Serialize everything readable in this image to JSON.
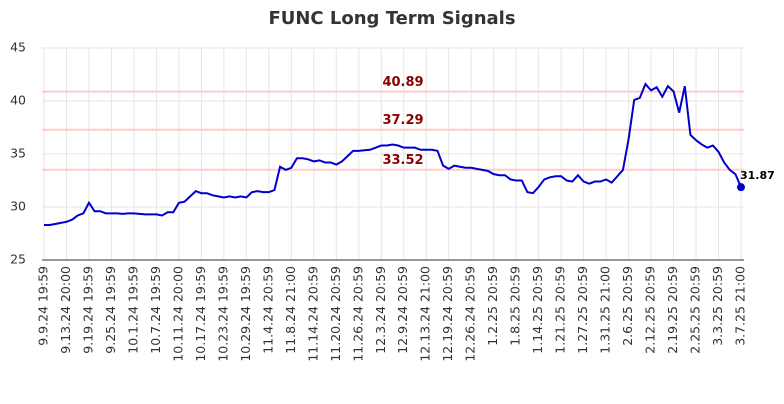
{
  "chart_data": {
    "type": "line",
    "title": "FUNC Long Term Signals",
    "categories": [
      "9.9.24 19:59",
      null,
      null,
      null,
      "9.13.24 20:00",
      null,
      null,
      null,
      "9.19.24 19:59",
      null,
      null,
      null,
      "9.25.24 19:59",
      null,
      null,
      null,
      "10.1.24 19:59",
      null,
      null,
      null,
      "10.7.24 19:59",
      null,
      null,
      null,
      "10.11.24 20:00",
      null,
      null,
      null,
      "10.17.24 19:59",
      null,
      null,
      null,
      "10.23.24 19:59",
      null,
      null,
      null,
      "10.29.24 19:59",
      null,
      null,
      null,
      "11.4.24 20:59",
      null,
      null,
      null,
      "11.8.24 21:00",
      null,
      null,
      null,
      "11.14.24 20:59",
      null,
      null,
      null,
      "11.20.24 20:59",
      null,
      null,
      null,
      "11.26.24 20:59",
      null,
      null,
      null,
      "12.3.24 20:59",
      null,
      null,
      null,
      "12.9.24 20:59",
      null,
      null,
      null,
      "12.13.24 21:00",
      null,
      null,
      null,
      "12.19.24 20:59",
      null,
      null,
      null,
      "12.26.24 20:59",
      null,
      null,
      null,
      "1.2.25 20:59",
      null,
      null,
      null,
      "1.8.25 20:59",
      null,
      null,
      null,
      "1.14.25 20:59",
      null,
      null,
      null,
      "1.21.25 20:59",
      null,
      null,
      null,
      "1.27.25 20:59",
      null,
      null,
      null,
      "1.31.25 21:00",
      null,
      null,
      null,
      "2.6.25 20:59",
      null,
      null,
      null,
      "2.12.25 20:59",
      null,
      null,
      null,
      "2.19.25 20:59",
      null,
      null,
      null,
      "2.25.25 20:59",
      null,
      null,
      null,
      "3.3.25 20:59",
      null,
      null,
      null,
      "3.7.25 21:00"
    ],
    "series": [
      {
        "color": "#0000cc",
        "values": [
          28.3,
          28.3,
          28.4,
          28.5,
          28.6,
          28.8,
          29.2,
          29.4,
          30.4,
          29.6,
          29.6,
          29.4,
          29.4,
          29.4,
          29.35,
          29.4,
          29.4,
          29.35,
          29.3,
          29.3,
          29.3,
          29.2,
          29.5,
          29.5,
          30.4,
          30.5,
          31.0,
          31.5,
          31.3,
          31.3,
          31.1,
          31.0,
          30.9,
          31.0,
          30.9,
          31.0,
          30.9,
          31.4,
          31.5,
          31.4,
          31.4,
          31.6,
          33.8,
          33.5,
          33.7,
          34.6,
          34.6,
          34.5,
          34.3,
          34.4,
          34.2,
          34.2,
          34.0,
          34.3,
          34.8,
          35.3,
          35.3,
          35.35,
          35.4,
          35.6,
          35.8,
          35.8,
          35.9,
          35.8,
          35.6,
          35.6,
          35.6,
          35.4,
          35.4,
          35.4,
          35.3,
          33.9,
          33.6,
          33.9,
          33.8,
          33.7,
          33.7,
          33.6,
          33.5,
          33.4,
          33.1,
          33.0,
          33.0,
          32.6,
          32.5,
          32.5,
          31.4,
          31.3,
          31.9,
          32.6,
          32.8,
          32.9,
          32.9,
          32.5,
          32.4,
          33.0,
          32.4,
          32.2,
          32.4,
          32.4,
          32.6,
          32.3,
          32.9,
          33.5,
          36.4,
          40.1,
          40.3,
          41.6,
          41.0,
          41.3,
          40.4,
          41.4,
          40.9,
          38.9,
          41.4,
          36.8,
          36.3,
          35.9,
          35.6,
          35.8,
          35.2,
          34.2,
          33.5,
          33.1,
          31.87
        ]
      }
    ],
    "reference_lines": [
      {
        "value": 40.89,
        "color": "#ffcccc",
        "label_color": "#8b0000"
      },
      {
        "value": 37.29,
        "color": "#ffcccc",
        "label_color": "#8b0000"
      },
      {
        "value": 33.52,
        "color": "#ffcccc",
        "label_color": "#8b0000"
      }
    ],
    "ylim": [
      25,
      45
    ],
    "yticks": [
      25,
      30,
      35,
      40,
      45
    ],
    "grid": true
  }
}
